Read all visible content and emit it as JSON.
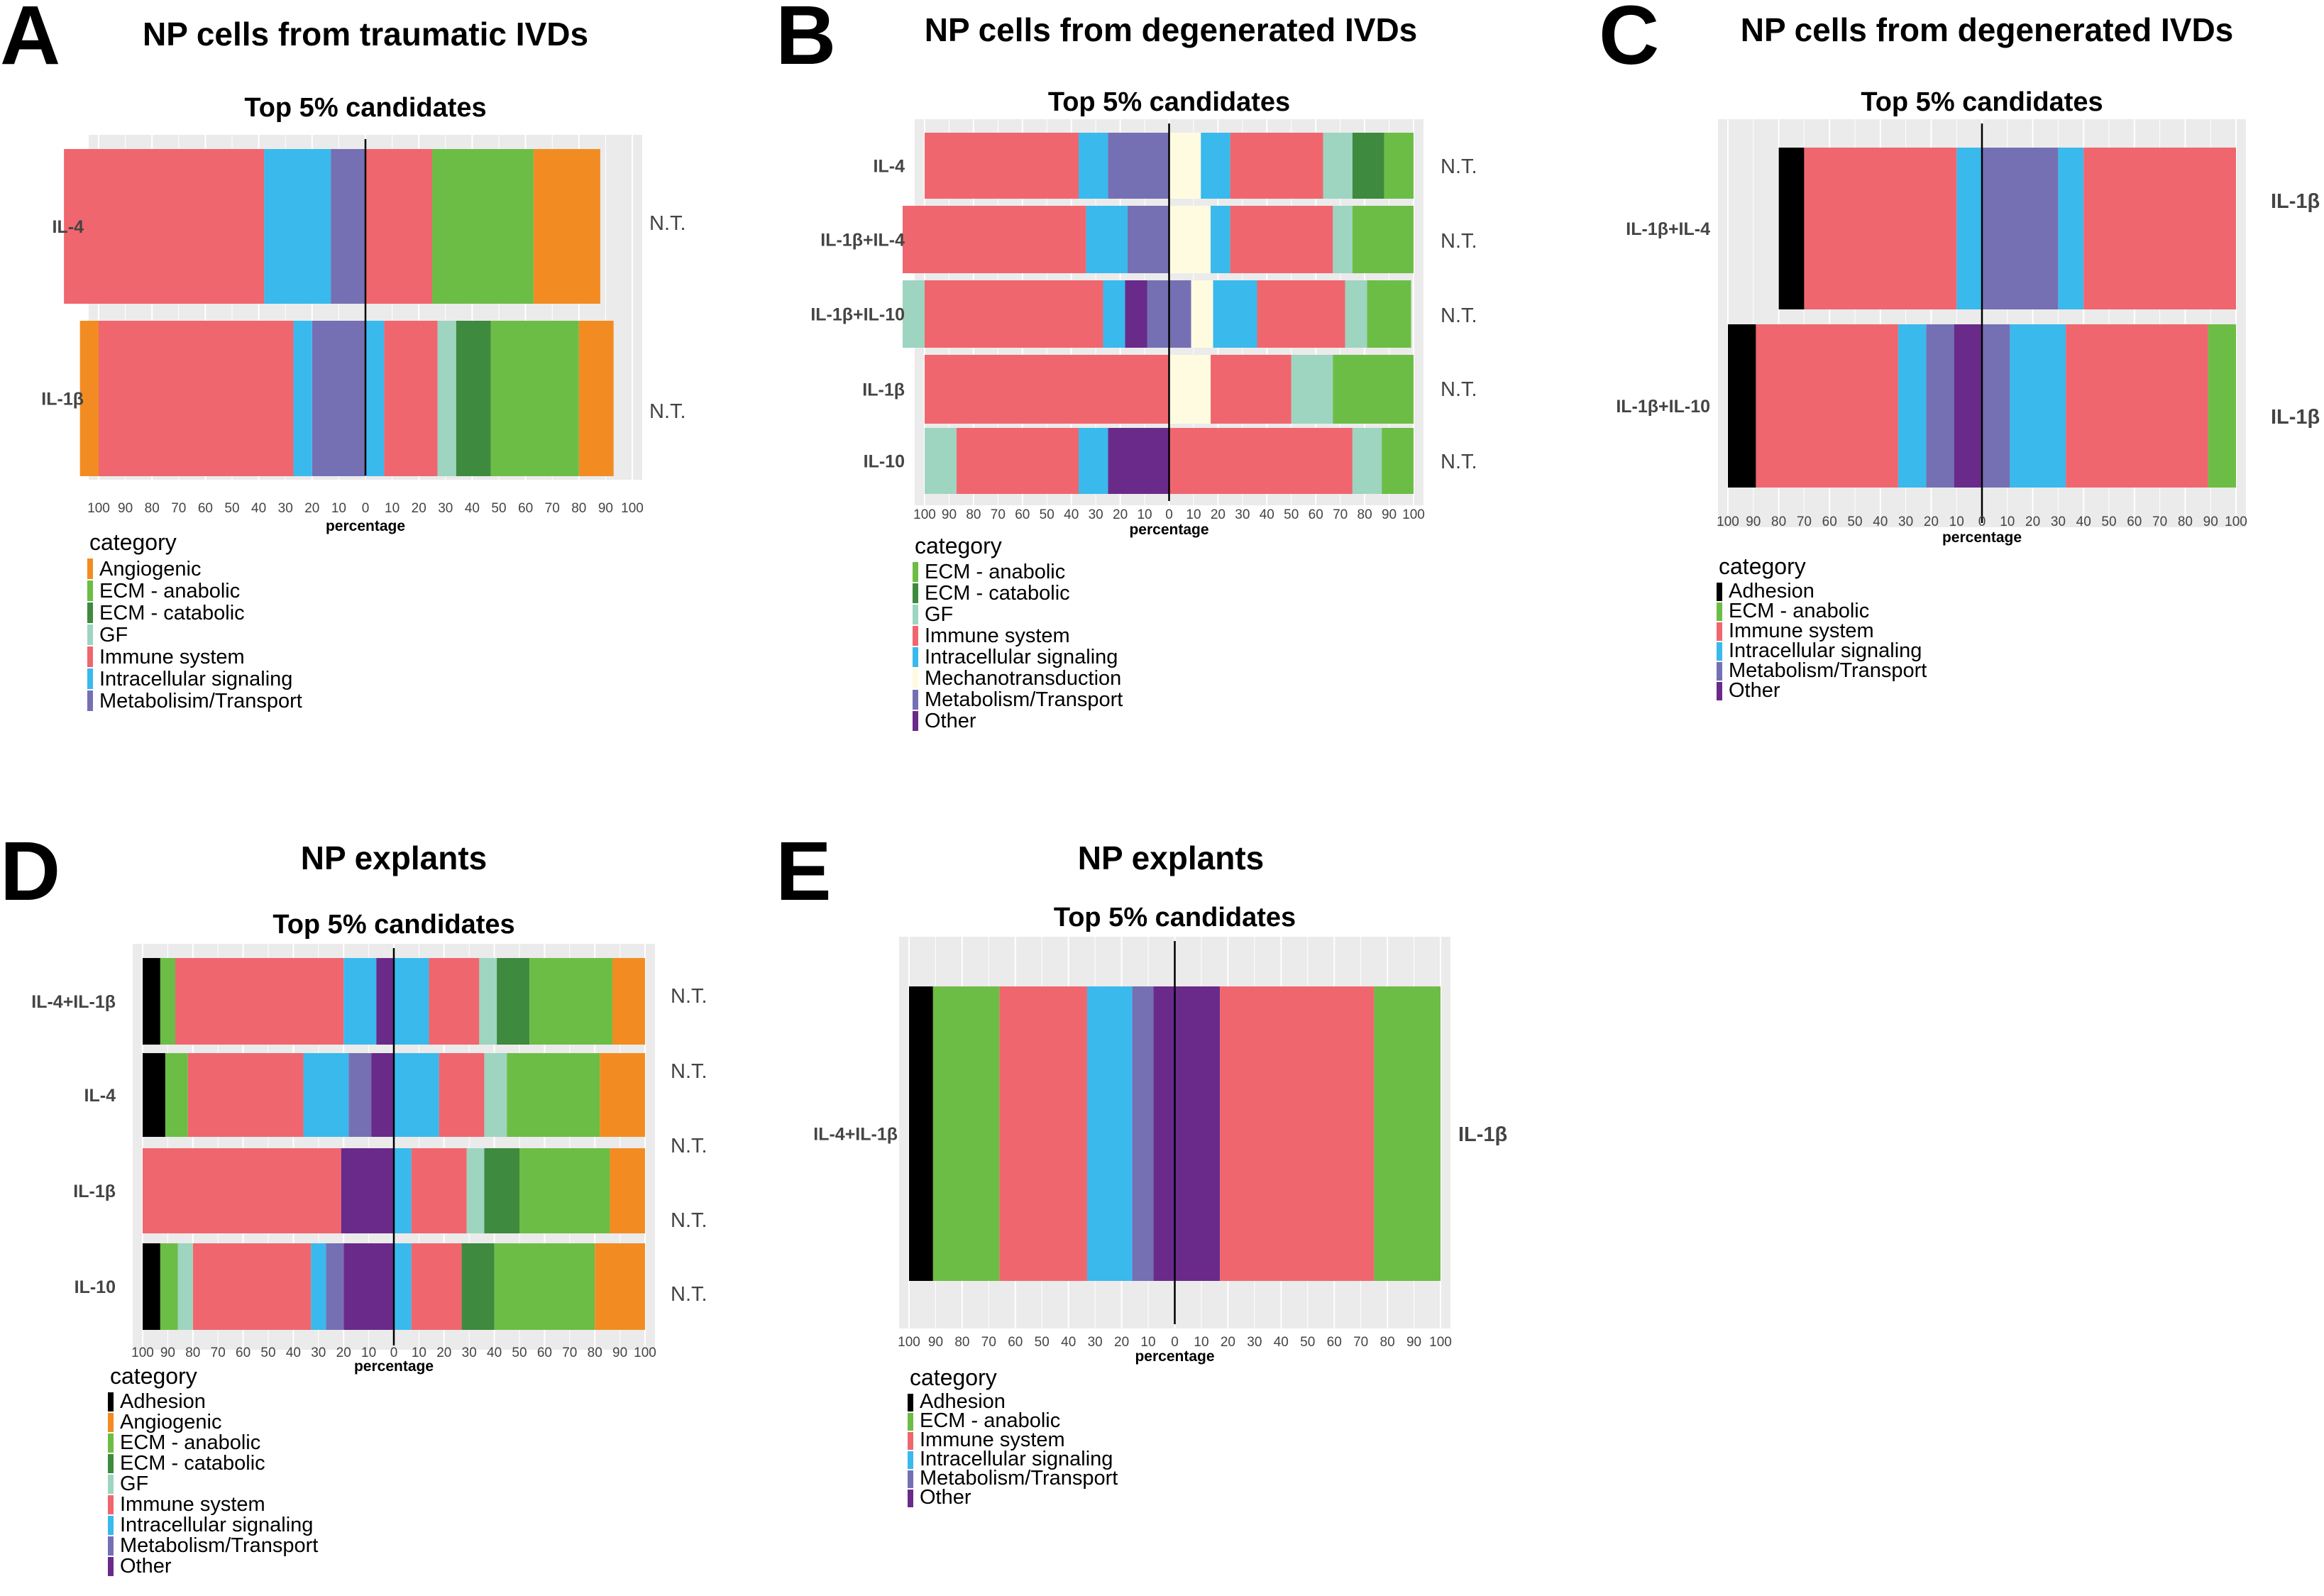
{
  "colors": {
    "Adhesion": "#000000",
    "Angiogenic": "#f28c22",
    "ECM - anabolic": "#6cbd45",
    "ECM - catabolic": "#3e8a3e",
    "GF": "#9dd5c0",
    "Immune system": "#f0666e",
    "Intracellular signaling": "#3ab9ec",
    "Mechanotransduction": "#fffbe0",
    "Metabolism/Transport": "#7570b3",
    "Metabolisim/Transport": "#7570b3",
    "Other": "#6a2a8a"
  },
  "tick_labels": [
    "100",
    "90",
    "80",
    "70",
    "60",
    "50",
    "40",
    "30",
    "20",
    "10",
    "0",
    "10",
    "20",
    "30",
    "40",
    "50",
    "60",
    "70",
    "80",
    "90",
    "100"
  ],
  "chart_data": [
    {
      "panel": "A",
      "type": "bar",
      "title": "NP cells from traumatic IVDs",
      "subtitle": "Top 5% candidates",
      "xlabel": "percentage",
      "xlim": [
        -100,
        100
      ],
      "grid": true,
      "legend_title": "category",
      "legend": [
        "Angiogenic",
        "ECM - anabolic",
        "ECM - catabolic",
        "GF",
        "Immune system",
        "Intracellular signaling",
        "Metabolisim/Transport"
      ],
      "rows": [
        {
          "label": "IL-4",
          "right": "N.T.",
          "left": [
            [
              "Metabolisim/Transport",
              13
            ],
            [
              "Intracellular signaling",
              25
            ],
            [
              "Immune system",
              75
            ]
          ],
          "right_segments": [
            [
              "Immune system",
              25
            ],
            [
              "ECM - anabolic",
              38
            ],
            [
              "Angiogenic",
              25
            ]
          ]
        },
        {
          "label": "IL-1β",
          "right": "N.T.",
          "left": [
            [
              "Metabolisim/Transport",
              20
            ],
            [
              "Intracellular signaling",
              7
            ],
            [
              "Immune system",
              73
            ],
            [
              "Angiogenic",
              7
            ]
          ],
          "right_segments": [
            [
              "Intracellular signaling",
              7
            ],
            [
              "Immune system",
              20
            ],
            [
              "GF",
              7
            ],
            [
              "ECM - catabolic",
              13
            ],
            [
              "ECM - anabolic",
              33
            ],
            [
              "Angiogenic",
              13
            ]
          ]
        }
      ]
    },
    {
      "panel": "B",
      "type": "bar",
      "title": "NP cells from degenerated IVDs",
      "subtitle": "Top 5% candidates",
      "xlabel": "percentage",
      "xlim": [
        -100,
        100
      ],
      "grid": true,
      "legend_title": "category",
      "legend": [
        "ECM - anabolic",
        "ECM - catabolic",
        "GF",
        "Immune system",
        "Intracellular signaling",
        "Mechanotransduction",
        "Metabolism/Transport",
        "Other"
      ],
      "rows": [
        {
          "label": "IL-4",
          "right": "N.T.",
          "left": [
            [
              "Metabolism/Transport",
              25
            ],
            [
              "Intracellular signaling",
              12
            ],
            [
              "Immune system",
              63
            ]
          ],
          "right_segments": [
            [
              "Mechanotransduction",
              13
            ],
            [
              "Intracellular signaling",
              12
            ],
            [
              "Immune system",
              38
            ],
            [
              "GF",
              12
            ],
            [
              "ECM - catabolic",
              13
            ],
            [
              "ECM - anabolic",
              12
            ]
          ]
        },
        {
          "label": "IL-1β+IL-4",
          "right": "N.T.",
          "left": [
            [
              "Metabolism/Transport",
              17
            ],
            [
              "Intracellular signaling",
              17
            ],
            [
              "Immune system",
              75
            ]
          ],
          "right_segments": [
            [
              "Mechanotransduction",
              17
            ],
            [
              "Intracellular signaling",
              8
            ],
            [
              "Immune system",
              42
            ],
            [
              "GF",
              8
            ],
            [
              "ECM - anabolic",
              25
            ]
          ]
        },
        {
          "label": "IL-1β+IL-10",
          "right": "N.T.",
          "left": [
            [
              "Metabolism/Transport",
              9
            ],
            [
              "Other",
              9
            ],
            [
              "Intracellular signaling",
              9
            ],
            [
              "Immune system",
              73
            ],
            [
              "GF",
              9
            ]
          ],
          "right_segments": [
            [
              "Metabolism/Transport",
              9
            ],
            [
              "Mechanotransduction",
              9
            ],
            [
              "Intracellular signaling",
              18
            ],
            [
              "Immune system",
              36
            ],
            [
              "GF",
              9
            ],
            [
              "ECM - anabolic",
              18
            ]
          ]
        },
        {
          "label": "IL-1β",
          "right": "N.T.",
          "left": [
            [
              "Immune system",
              100
            ]
          ],
          "right_segments": [
            [
              "Mechanotransduction",
              17
            ],
            [
              "Immune system",
              33
            ],
            [
              "GF",
              17
            ],
            [
              "ECM - anabolic",
              33
            ]
          ]
        },
        {
          "label": "IL-10",
          "right": "N.T.",
          "left": [
            [
              "Other",
              25
            ],
            [
              "Intracellular signaling",
              12
            ],
            [
              "Immune system",
              50
            ],
            [
              "GF",
              13
            ]
          ],
          "right_segments": [
            [
              "Immune system",
              75
            ],
            [
              "GF",
              12
            ],
            [
              "ECM - anabolic",
              13
            ]
          ]
        }
      ]
    },
    {
      "panel": "C",
      "type": "bar",
      "title": "NP cells from degenerated IVDs",
      "subtitle": "Top 5% candidates",
      "xlabel": "percentage",
      "xlim": [
        -100,
        100
      ],
      "grid": true,
      "legend_title": "category",
      "legend": [
        "Adhesion",
        "ECM - anabolic",
        "Immune system",
        "Intracellular signaling",
        "Metabolism/Transport",
        "Other"
      ],
      "rows": [
        {
          "label": "IL-1β+IL-4",
          "right": "IL-1β",
          "left": [
            [
              "Intracellular signaling",
              10
            ],
            [
              "Immune system",
              60
            ],
            [
              "Adhesion",
              10
            ]
          ],
          "right_segments": [
            [
              "Metabolism/Transport",
              30
            ],
            [
              "Intracellular signaling",
              10
            ],
            [
              "Immune system",
              60
            ]
          ]
        },
        {
          "label": "IL-1β+IL-10",
          "right": "IL-1β",
          "left": [
            [
              "Other",
              11
            ],
            [
              "Metabolism/Transport",
              11
            ],
            [
              "Intracellular signaling",
              11
            ],
            [
              "Immune system",
              56
            ],
            [
              "Adhesion",
              11
            ]
          ],
          "right_segments": [
            [
              "Metabolism/Transport",
              11
            ],
            [
              "Intracellular signaling",
              22
            ],
            [
              "Immune system",
              56
            ],
            [
              "ECM - anabolic",
              11
            ]
          ]
        }
      ]
    },
    {
      "panel": "D",
      "type": "bar",
      "title": "NP explants",
      "subtitle": "Top 5% candidates",
      "xlabel": "percentage",
      "xlim": [
        -100,
        100
      ],
      "grid": true,
      "legend_title": "category",
      "legend": [
        "Adhesion",
        "Angiogenic",
        "ECM - anabolic",
        "ECM - catabolic",
        "GF",
        "Immune system",
        "Intracellular signaling",
        "Metabolism/Transport",
        "Other"
      ],
      "rows": [
        {
          "label": "IL-4+IL-1β",
          "right": "N.T.",
          "left": [
            [
              "Other",
              7
            ],
            [
              "Intracellular signaling",
              13
            ],
            [
              "Immune system",
              67
            ],
            [
              "ECM - anabolic",
              6
            ],
            [
              "Adhesion",
              7
            ]
          ],
          "right_segments": [
            [
              "Intracellular signaling",
              14
            ],
            [
              "Immune system",
              20
            ],
            [
              "GF",
              7
            ],
            [
              "ECM - catabolic",
              13
            ],
            [
              "ECM - anabolic",
              33
            ],
            [
              "Angiogenic",
              13
            ]
          ]
        },
        {
          "label": "IL-4",
          "right": "N.T.",
          "left": [
            [
              "Other",
              9
            ],
            [
              "Metabolism/Transport",
              9
            ],
            [
              "Intracellular signaling",
              18
            ],
            [
              "Immune system",
              46
            ],
            [
              "ECM - anabolic",
              9
            ],
            [
              "Adhesion",
              9
            ]
          ],
          "right_segments": [
            [
              "Intracellular signaling",
              18
            ],
            [
              "Immune system",
              18
            ],
            [
              "GF",
              9
            ],
            [
              "ECM - anabolic",
              37
            ],
            [
              "Angiogenic",
              18
            ]
          ]
        },
        {
          "label": "IL-1β",
          "right": "N.T.",
          "left": [
            [
              "Other",
              21
            ],
            [
              "Immune system",
              79
            ]
          ],
          "right_segments": [
            [
              "Intracellular signaling",
              7
            ],
            [
              "Immune system",
              22
            ],
            [
              "GF",
              7
            ],
            [
              "ECM - catabolic",
              14
            ],
            [
              "ECM - anabolic",
              36
            ],
            [
              "Angiogenic",
              14
            ]
          ]
        },
        {
          "label": "IL-10",
          "right": "N.T.",
          "left": [
            [
              "Other",
              20
            ],
            [
              "Metabolism/Transport",
              7
            ],
            [
              "Intracellular signaling",
              6
            ],
            [
              "Immune system",
              47
            ],
            [
              "GF",
              6
            ],
            [
              "ECM - anabolic",
              7
            ],
            [
              "Adhesion",
              7
            ]
          ],
          "right_segments": [
            [
              "Intracellular signaling",
              7
            ],
            [
              "Immune system",
              20
            ],
            [
              "ECM - catabolic",
              13
            ],
            [
              "ECM - anabolic",
              40
            ],
            [
              "Angiogenic",
              20
            ]
          ]
        }
      ],
      "extra_right_labels": [
        "N.T."
      ]
    },
    {
      "panel": "E",
      "type": "bar",
      "title": "NP explants",
      "subtitle": "Top 5% candidates",
      "xlabel": "percentage",
      "xlim": [
        -100,
        100
      ],
      "grid": true,
      "legend_title": "category",
      "legend": [
        "Adhesion",
        "ECM - anabolic",
        "Immune system",
        "Intracellular signaling",
        "Metabolism/Transport",
        "Other"
      ],
      "rows": [
        {
          "label": "IL-4+IL-1β",
          "right": "IL-1β",
          "left": [
            [
              "Other",
              8
            ],
            [
              "Metabolism/Transport",
              8
            ],
            [
              "Intracellular signaling",
              17
            ],
            [
              "Immune system",
              33
            ],
            [
              "ECM - anabolic",
              25
            ],
            [
              "Adhesion",
              9
            ]
          ],
          "right_segments": [
            [
              "Other",
              17
            ],
            [
              "Immune system",
              58
            ],
            [
              "ECM - anabolic",
              25
            ]
          ]
        }
      ]
    }
  ]
}
